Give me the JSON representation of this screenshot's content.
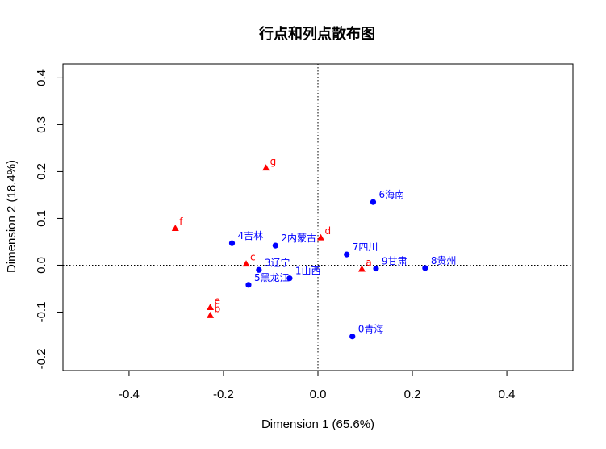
{
  "chart_data": {
    "type": "scatter",
    "title": "行点和列点散布图",
    "xlabel": "Dimension 1 (65.6%)",
    "ylabel": "Dimension 2 (18.4%)",
    "xlim": [
      -0.54,
      0.54
    ],
    "ylim": [
      -0.225,
      0.43
    ],
    "xticks": [
      -0.4,
      -0.2,
      0.0,
      0.2,
      0.4
    ],
    "xtick_labels": [
      "-0.4",
      "-0.2",
      "0.0",
      "0.2",
      "0.4"
    ],
    "yticks": [
      -0.2,
      -0.1,
      0.0,
      0.1,
      0.2,
      0.3,
      0.4
    ],
    "ytick_labels": [
      "-0.2",
      "-0.1",
      "0.0",
      "0.1",
      "0.2",
      "0.3",
      "0.4"
    ],
    "reference_lines": {
      "x": 0,
      "y": 0,
      "style": "dotted"
    },
    "grid": false,
    "series": [
      {
        "marker": "circle",
        "color": "#0000ff",
        "points": [
          {
            "label": "0青海",
            "x": 0.073,
            "y": -0.152
          },
          {
            "label": "1山西",
            "x": -0.06,
            "y": -0.028
          },
          {
            "label": "2内蒙古",
            "x": -0.09,
            "y": 0.042
          },
          {
            "label": "3辽宁",
            "x": -0.125,
            "y": -0.01
          },
          {
            "label": "4吉林",
            "x": -0.182,
            "y": 0.047
          },
          {
            "label": "5黑龙江",
            "x": -0.147,
            "y": -0.042
          },
          {
            "label": "6海南",
            "x": 0.117,
            "y": 0.135
          },
          {
            "label": "7四川",
            "x": 0.061,
            "y": 0.023
          },
          {
            "label": "8贵州",
            "x": 0.227,
            "y": -0.006
          },
          {
            "label": "9甘肃",
            "x": 0.123,
            "y": -0.007
          }
        ]
      },
      {
        "marker": "triangle",
        "color": "#ff0000",
        "points": [
          {
            "label": "a",
            "x": 0.093,
            "y": -0.008
          },
          {
            "label": "b",
            "x": -0.228,
            "y": -0.107
          },
          {
            "label": "c",
            "x": -0.152,
            "y": 0.003
          },
          {
            "label": "d",
            "x": 0.006,
            "y": 0.059
          },
          {
            "label": "e",
            "x": -0.228,
            "y": -0.09
          },
          {
            "label": "f",
            "x": -0.302,
            "y": 0.079
          },
          {
            "label": "g",
            "x": -0.11,
            "y": 0.208
          }
        ]
      }
    ]
  }
}
